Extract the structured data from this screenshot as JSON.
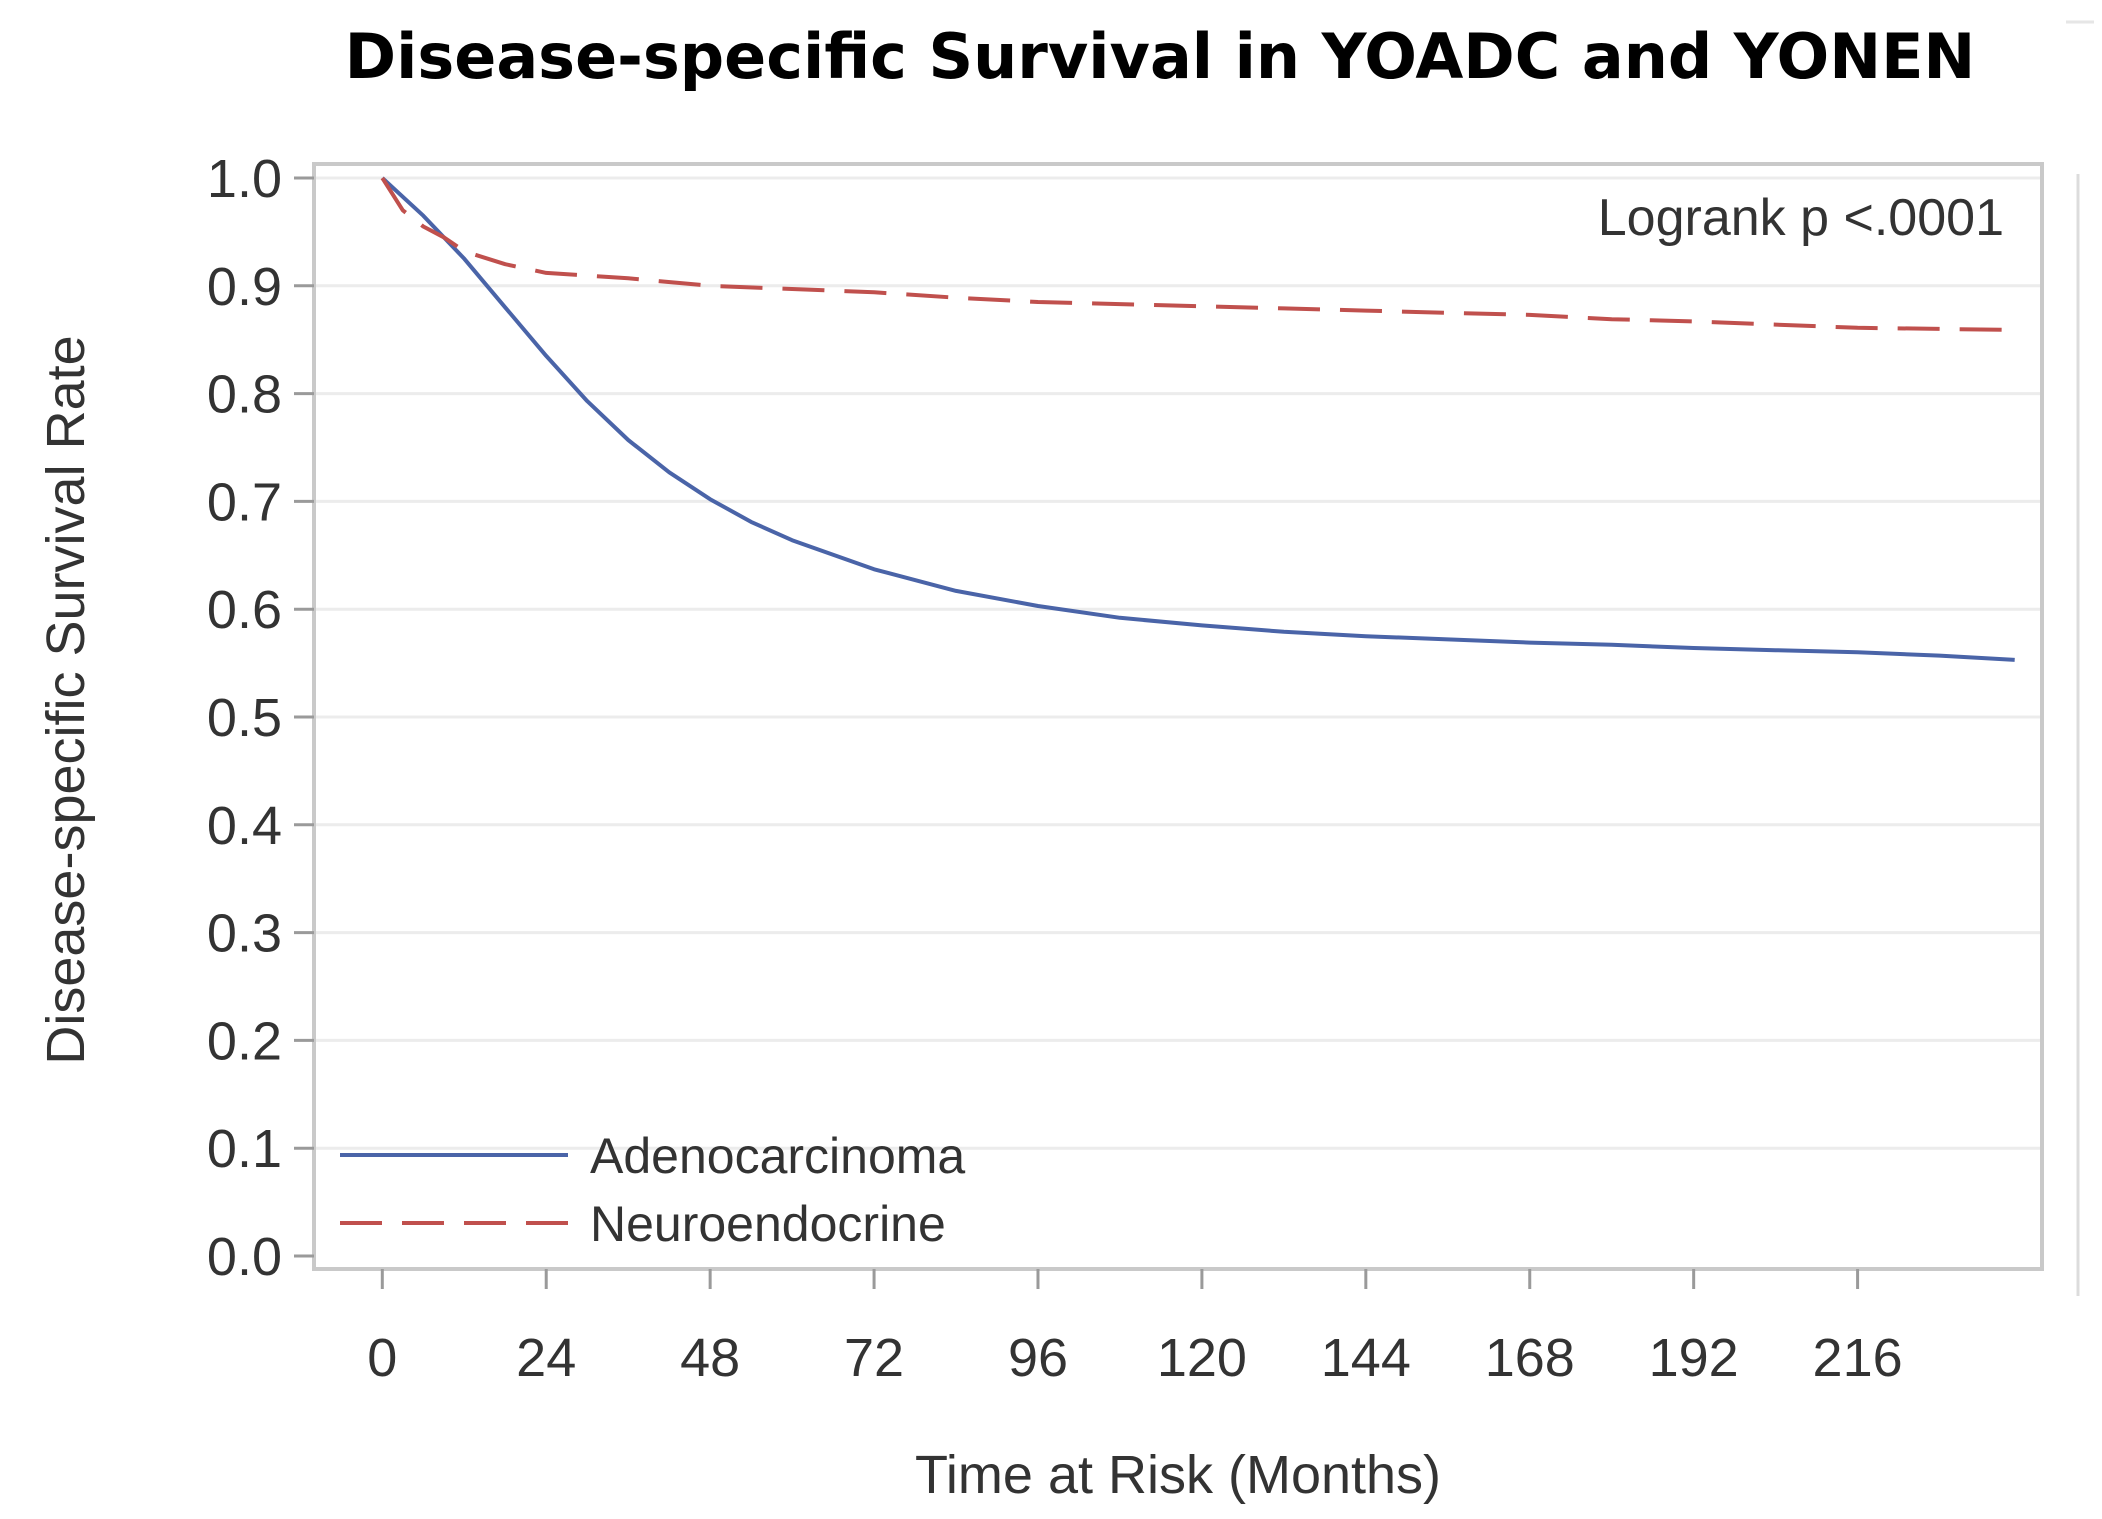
{
  "chart_data": {
    "type": "line",
    "title": "Disease-specific Survival in YOADC and YONEN",
    "xlabel": "Time at Risk (Months)",
    "ylabel": "Disease-specific Survival Rate",
    "xlim": [
      -10,
      243
    ],
    "ylim": [
      0,
      1.0
    ],
    "xticks": [
      "0",
      "24",
      "48",
      "72",
      "96",
      "120",
      "144",
      "168",
      "192",
      "216"
    ],
    "yticks": [
      "0.0",
      "0.1",
      "0.2",
      "0.3",
      "0.4",
      "0.5",
      "0.6",
      "0.7",
      "0.8",
      "0.9",
      "1.0"
    ],
    "grid": true,
    "legend_position": "bottom-left",
    "annotation": "Logrank p <.0001",
    "series": [
      {
        "name": "Adenocarcinoma",
        "color": "#4a64a8",
        "style": "solid",
        "x": [
          0,
          6,
          12,
          18,
          24,
          30,
          36,
          42,
          48,
          54,
          60,
          72,
          84,
          96,
          108,
          120,
          132,
          144,
          156,
          168,
          180,
          192,
          204,
          216,
          228,
          239
        ],
        "y": [
          1.0,
          0.965,
          0.925,
          0.88,
          0.835,
          0.793,
          0.757,
          0.727,
          0.702,
          0.681,
          0.664,
          0.637,
          0.617,
          0.603,
          0.592,
          0.585,
          0.579,
          0.575,
          0.572,
          0.569,
          0.567,
          0.564,
          0.562,
          0.56,
          0.557,
          0.553
        ]
      },
      {
        "name": "Neuroendocrine",
        "color": "#c0504d",
        "style": "dashed",
        "x": [
          0,
          3,
          6,
          9,
          12,
          18,
          24,
          36,
          48,
          60,
          72,
          84,
          96,
          108,
          120,
          132,
          144,
          156,
          168,
          180,
          192,
          204,
          216,
          228,
          239
        ],
        "y": [
          1.0,
          0.97,
          0.955,
          0.945,
          0.932,
          0.92,
          0.912,
          0.907,
          0.9,
          0.897,
          0.894,
          0.889,
          0.885,
          0.883,
          0.881,
          0.879,
          0.877,
          0.875,
          0.873,
          0.869,
          0.867,
          0.864,
          0.861,
          0.86,
          0.859
        ]
      }
    ]
  }
}
